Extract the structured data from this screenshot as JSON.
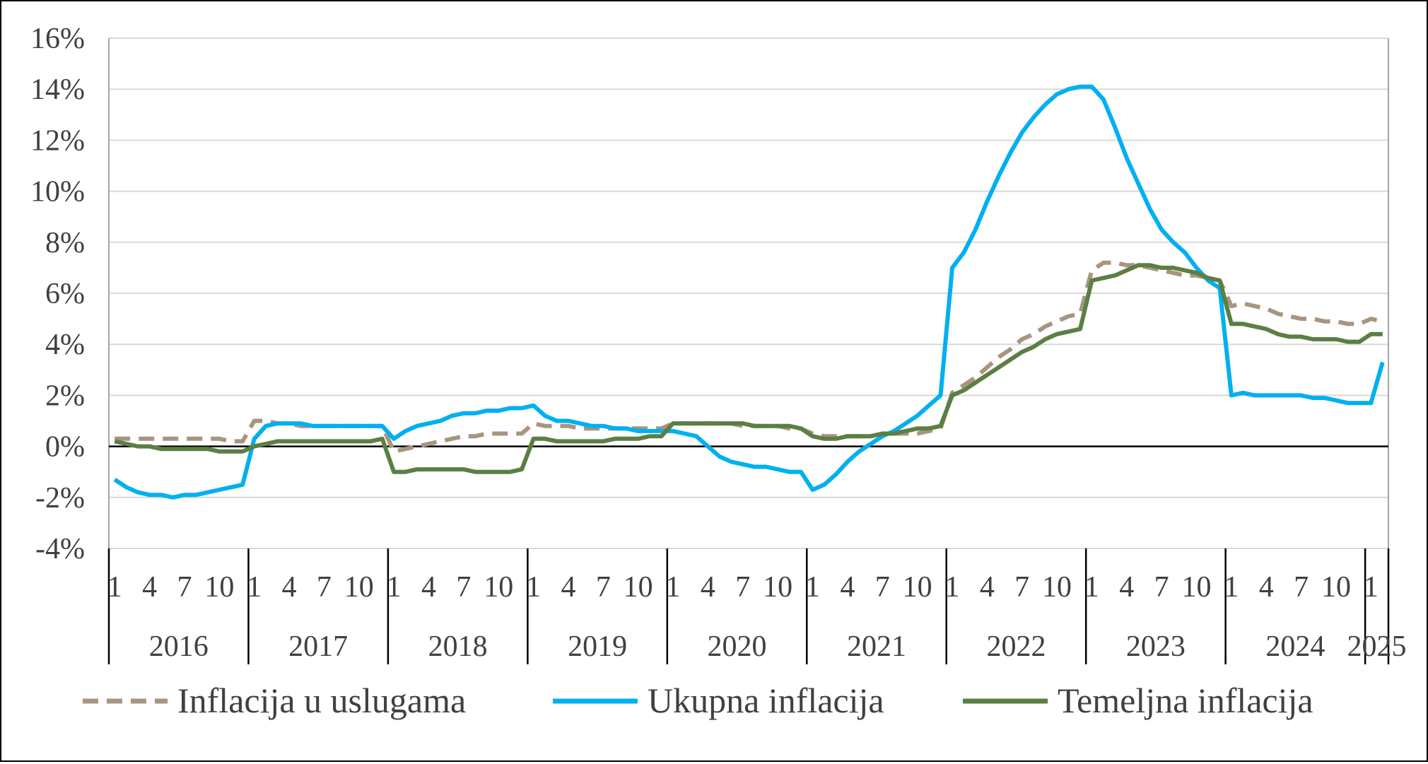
{
  "chart_data": {
    "type": "line",
    "title": "",
    "xlabel": "",
    "ylabel": "",
    "ylim": [
      -4,
      16
    ],
    "y_ticks": [
      "-4%",
      "-2%",
      "0%",
      "2%",
      "4%",
      "6%",
      "8%",
      "10%",
      "12%",
      "14%",
      "16%"
    ],
    "grid": "horizontal",
    "legend_position": "bottom",
    "x_month_tick_labels": [
      "1",
      "4",
      "7",
      "10"
    ],
    "years": [
      {
        "label": "2016",
        "months": 12
      },
      {
        "label": "2017",
        "months": 12
      },
      {
        "label": "2018",
        "months": 12
      },
      {
        "label": "2019",
        "months": 12
      },
      {
        "label": "2020",
        "months": 12
      },
      {
        "label": "2021",
        "months": 12
      },
      {
        "label": "2022",
        "months": 12
      },
      {
        "label": "2023",
        "months": 12
      },
      {
        "label": "2024",
        "months": 12
      },
      {
        "label": "2025",
        "months": 2
      }
    ],
    "x_month_index": [
      1,
      2,
      3,
      4,
      5,
      6,
      7,
      8,
      9,
      10,
      11,
      12,
      13,
      14,
      15,
      16,
      17,
      18,
      19,
      20,
      21,
      22,
      23,
      24,
      25,
      26,
      27,
      28,
      29,
      30,
      31,
      32,
      33,
      34,
      35,
      36,
      37,
      38,
      39,
      40,
      41,
      42,
      43,
      44,
      45,
      46,
      47,
      48,
      49,
      50,
      51,
      52,
      53,
      54,
      55,
      56,
      57,
      58,
      59,
      60,
      61,
      62,
      63,
      64,
      65,
      66,
      67,
      68,
      69,
      70,
      71,
      72,
      73,
      74,
      75,
      76,
      77,
      78,
      79,
      80,
      81,
      82,
      83,
      84,
      85,
      86,
      87,
      88,
      89,
      90,
      91,
      92,
      93,
      94,
      95,
      96,
      97,
      98,
      99,
      100,
      101,
      102,
      103,
      104,
      105,
      106,
      107,
      108,
      109,
      110
    ],
    "series": [
      {
        "name": "Inflacija u uslugama",
        "color": "#a89580",
        "dash": "dashed",
        "values": [
          0.3,
          0.3,
          0.3,
          0.3,
          0.3,
          0.3,
          0.3,
          0.3,
          0.3,
          0.3,
          0.2,
          0.2,
          1.0,
          1.0,
          0.9,
          0.9,
          0.8,
          0.8,
          0.8,
          0.8,
          0.8,
          0.8,
          0.8,
          0.8,
          -0.2,
          -0.1,
          0.0,
          0.1,
          0.2,
          0.3,
          0.4,
          0.4,
          0.5,
          0.5,
          0.5,
          0.5,
          0.9,
          0.8,
          0.8,
          0.8,
          0.7,
          0.7,
          0.7,
          0.7,
          0.7,
          0.7,
          0.7,
          0.7,
          0.9,
          0.9,
          0.9,
          0.9,
          0.9,
          0.9,
          0.8,
          0.8,
          0.8,
          0.8,
          0.7,
          0.7,
          0.5,
          0.4,
          0.4,
          0.4,
          0.4,
          0.4,
          0.5,
          0.5,
          0.5,
          0.5,
          0.6,
          0.7,
          2.1,
          2.4,
          2.7,
          3.1,
          3.5,
          3.8,
          4.2,
          4.4,
          4.7,
          4.9,
          5.1,
          5.2,
          6.9,
          7.2,
          7.2,
          7.1,
          7.1,
          7.0,
          6.9,
          6.8,
          6.7,
          6.7,
          6.6,
          6.5,
          5.5,
          5.6,
          5.5,
          5.4,
          5.2,
          5.1,
          5.0,
          5.0,
          4.9,
          4.9,
          4.8,
          4.8,
          5.0,
          4.9
        ]
      },
      {
        "name": "Ukupna inflacija",
        "color": "#00b0f0",
        "dash": "solid",
        "values": [
          -1.3,
          -1.6,
          -1.8,
          -1.9,
          -1.9,
          -2.0,
          -1.9,
          -1.9,
          -1.8,
          -1.7,
          -1.6,
          -1.5,
          0.3,
          0.8,
          0.9,
          0.9,
          0.9,
          0.8,
          0.8,
          0.8,
          0.8,
          0.8,
          0.8,
          0.8,
          0.3,
          0.6,
          0.8,
          0.9,
          1.0,
          1.2,
          1.3,
          1.3,
          1.4,
          1.4,
          1.5,
          1.5,
          1.6,
          1.2,
          1.0,
          1.0,
          0.9,
          0.8,
          0.8,
          0.7,
          0.7,
          0.6,
          0.6,
          0.6,
          0.6,
          0.5,
          0.4,
          0.0,
          -0.4,
          -0.6,
          -0.7,
          -0.8,
          -0.8,
          -0.9,
          -1.0,
          -1.0,
          -1.7,
          -1.5,
          -1.1,
          -0.6,
          -0.2,
          0.1,
          0.4,
          0.6,
          0.9,
          1.2,
          1.6,
          2.0,
          7.0,
          7.6,
          8.5,
          9.6,
          10.6,
          11.5,
          12.3,
          12.9,
          13.4,
          13.8,
          14.0,
          14.1,
          14.1,
          13.6,
          12.5,
          11.3,
          10.3,
          9.3,
          8.5,
          8.0,
          7.6,
          7.0,
          6.5,
          6.2,
          2.0,
          2.1,
          2.0,
          2.0,
          2.0,
          2.0,
          2.0,
          1.9,
          1.9,
          1.8,
          1.7,
          1.7,
          1.7,
          3.3
        ]
      },
      {
        "name": "Temeljna inflacija",
        "color": "#5b7f43",
        "dash": "solid",
        "values": [
          0.2,
          0.1,
          0.0,
          0.0,
          -0.1,
          -0.1,
          -0.1,
          -0.1,
          -0.1,
          -0.2,
          -0.2,
          -0.2,
          0.0,
          0.1,
          0.2,
          0.2,
          0.2,
          0.2,
          0.2,
          0.2,
          0.2,
          0.2,
          0.2,
          0.3,
          -1.0,
          -1.0,
          -0.9,
          -0.9,
          -0.9,
          -0.9,
          -0.9,
          -1.0,
          -1.0,
          -1.0,
          -1.0,
          -0.9,
          0.3,
          0.3,
          0.2,
          0.2,
          0.2,
          0.2,
          0.2,
          0.3,
          0.3,
          0.3,
          0.4,
          0.4,
          0.9,
          0.9,
          0.9,
          0.9,
          0.9,
          0.9,
          0.9,
          0.8,
          0.8,
          0.8,
          0.8,
          0.7,
          0.4,
          0.3,
          0.3,
          0.4,
          0.4,
          0.4,
          0.5,
          0.5,
          0.6,
          0.7,
          0.7,
          0.8,
          2.0,
          2.2,
          2.5,
          2.8,
          3.1,
          3.4,
          3.7,
          3.9,
          4.2,
          4.4,
          4.5,
          4.6,
          6.5,
          6.6,
          6.7,
          6.9,
          7.1,
          7.1,
          7.0,
          7.0,
          6.9,
          6.8,
          6.6,
          6.5,
          4.8,
          4.8,
          4.7,
          4.6,
          4.4,
          4.3,
          4.3,
          4.2,
          4.2,
          4.2,
          4.1,
          4.1,
          4.4,
          4.4
        ]
      }
    ]
  }
}
